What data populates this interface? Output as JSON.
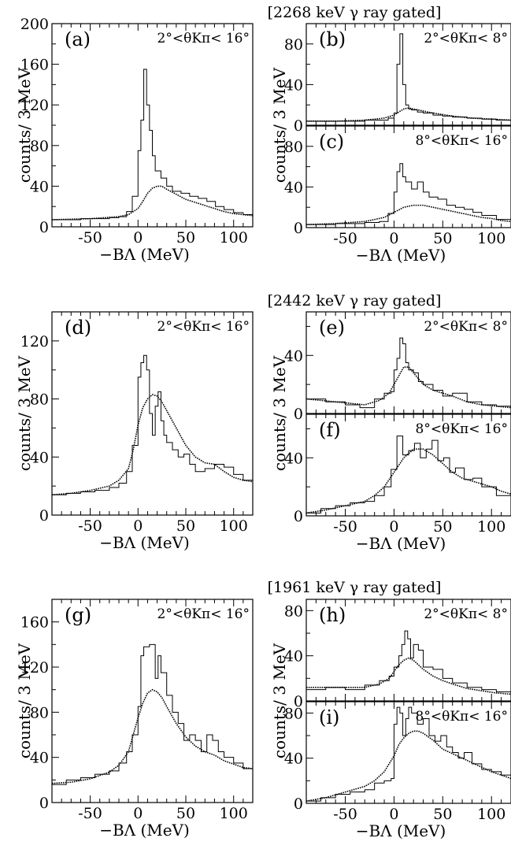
{
  "chart_data": [
    {
      "type": "line",
      "group_title": "[2268 keV γ ray gated]",
      "panel": "(a)",
      "theta_range": "2°<θKπ< 16°",
      "xlabel": "−BΛ (MeV)",
      "ylabel": "counts/ 3 MeV",
      "xlim": [
        -90,
        120
      ],
      "ylim": [
        0,
        200
      ],
      "xticks": [
        -50,
        0,
        50,
        100
      ],
      "yticks": [
        0,
        40,
        80,
        120,
        160,
        200
      ],
      "series": [
        {
          "style": "histogram",
          "x": [
            -90,
            -75,
            -60,
            -45,
            -30,
            -20,
            -12,
            -6,
            0,
            3,
            6,
            9,
            12,
            15,
            18,
            24,
            30,
            36,
            45,
            54,
            63,
            72,
            81,
            90,
            100,
            110,
            120
          ],
          "values": [
            7,
            7,
            8,
            8,
            9,
            10,
            15,
            30,
            75,
            105,
            155,
            120,
            95,
            70,
            55,
            48,
            40,
            35,
            33,
            30,
            28,
            25,
            20,
            17,
            14,
            12,
            11
          ]
        },
        {
          "style": "fit",
          "x": [
            -90,
            -70,
            -50,
            -35,
            -20,
            -10,
            0,
            5,
            10,
            15,
            20,
            25,
            30,
            40,
            50,
            60,
            70,
            80,
            90,
            100,
            110,
            120
          ],
          "values": [
            7,
            7.5,
            8,
            9,
            10,
            12,
            18,
            25,
            33,
            38,
            40,
            40,
            37,
            32,
            27,
            24,
            21,
            18,
            15,
            13,
            12,
            11
          ]
        }
      ]
    },
    {
      "type": "line",
      "panel": "(b)",
      "theta_range": "2°<θKπ< 8°",
      "ylabel": "counts/ 3 MeV",
      "xlim": [
        -90,
        120
      ],
      "ylim": [
        0,
        100
      ],
      "yticks": [
        0,
        40,
        80
      ],
      "series": [
        {
          "style": "histogram",
          "x": [
            -90,
            -60,
            -30,
            -15,
            -6,
            0,
            3,
            6,
            9,
            12,
            15,
            18,
            24,
            30,
            40,
            50,
            60,
            75,
            90,
            105,
            120
          ],
          "values": [
            4,
            4,
            5,
            5,
            7,
            12,
            60,
            90,
            40,
            20,
            16,
            15,
            13,
            12,
            10,
            9,
            8,
            7,
            6,
            5,
            5
          ]
        },
        {
          "style": "fit",
          "x": [
            -90,
            -60,
            -30,
            -10,
            0,
            5,
            10,
            15,
            20,
            30,
            40,
            60,
            80,
            100,
            120
          ],
          "values": [
            4,
            4,
            5,
            7,
            10,
            13,
            16,
            17,
            16,
            14,
            12,
            9,
            7,
            6,
            5
          ]
        }
      ]
    },
    {
      "type": "line",
      "panel": "(c)",
      "theta_range": "8°<θKπ< 16°",
      "xlabel": "−BΛ (MeV)",
      "xlim": [
        -90,
        120
      ],
      "ylim": [
        0,
        100
      ],
      "xticks": [
        -50,
        0,
        50,
        100
      ],
      "yticks": [
        0,
        40,
        80
      ],
      "series": [
        {
          "style": "histogram",
          "x": [
            -90,
            -60,
            -30,
            -15,
            -6,
            0,
            3,
            6,
            9,
            12,
            18,
            24,
            30,
            36,
            45,
            54,
            63,
            72,
            81,
            90,
            105,
            120
          ],
          "values": [
            3,
            4,
            5,
            6,
            14,
            35,
            55,
            63,
            50,
            45,
            38,
            45,
            35,
            30,
            28,
            22,
            20,
            18,
            15,
            12,
            8,
            6
          ]
        },
        {
          "style": "fit",
          "x": [
            -90,
            -60,
            -30,
            -10,
            0,
            10,
            20,
            30,
            40,
            50,
            60,
            70,
            80,
            90,
            100,
            110,
            120
          ],
          "values": [
            3,
            4,
            6,
            10,
            15,
            20,
            22,
            22,
            20,
            18,
            16,
            14,
            12,
            10,
            9,
            7,
            6
          ]
        }
      ]
    },
    {
      "type": "line",
      "group_title": "[2442 keV γ ray gated]",
      "panel": "(d)",
      "theta_range": "2°<θKπ< 16°",
      "xlabel": "−BΛ (MeV)",
      "ylabel": "counts/ 3 MeV",
      "xlim": [
        -90,
        120
      ],
      "ylim": [
        0,
        140
      ],
      "xticks": [
        -50,
        0,
        50,
        100
      ],
      "yticks": [
        0,
        40,
        80,
        120
      ],
      "series": [
        {
          "style": "histogram",
          "x": [
            -90,
            -75,
            -60,
            -45,
            -30,
            -20,
            -12,
            -6,
            0,
            3,
            6,
            9,
            12,
            15,
            18,
            21,
            24,
            27,
            30,
            36,
            42,
            48,
            54,
            60,
            70,
            80,
            90,
            100,
            110,
            120
          ],
          "values": [
            14,
            15,
            16,
            17,
            19,
            22,
            30,
            48,
            95,
            105,
            110,
            100,
            70,
            55,
            75,
            85,
            65,
            55,
            50,
            45,
            40,
            42,
            35,
            30,
            32,
            35,
            33,
            28,
            24,
            22
          ]
        },
        {
          "style": "fit",
          "x": [
            -90,
            -70,
            -50,
            -30,
            -20,
            -10,
            -5,
            0,
            5,
            10,
            15,
            20,
            25,
            30,
            40,
            50,
            60,
            70,
            80,
            90,
            100,
            110,
            120
          ],
          "values": [
            14,
            15,
            17,
            20,
            24,
            32,
            45,
            62,
            74,
            80,
            83,
            82,
            78,
            72,
            60,
            48,
            40,
            36,
            35,
            30,
            26,
            24,
            23
          ]
        }
      ]
    },
    {
      "type": "line",
      "panel": "(e)",
      "theta_range": "2°<θKπ< 8°",
      "ylabel": "counts/ 3 MeV",
      "xlim": [
        -90,
        120
      ],
      "ylim": [
        0,
        70
      ],
      "yticks": [
        0,
        40
      ],
      "series": [
        {
          "style": "histogram",
          "x": [
            -90,
            -70,
            -50,
            -35,
            -20,
            -10,
            -3,
            0,
            3,
            6,
            9,
            12,
            15,
            20,
            25,
            30,
            40,
            50,
            60,
            75,
            90,
            105,
            120
          ],
          "values": [
            10,
            8,
            6,
            4,
            10,
            14,
            15,
            30,
            38,
            52,
            48,
            35,
            30,
            28,
            22,
            20,
            16,
            12,
            14,
            8,
            6,
            5,
            4
          ]
        },
        {
          "style": "fit",
          "x": [
            -90,
            -60,
            -30,
            -15,
            -5,
            0,
            5,
            10,
            15,
            20,
            25,
            30,
            40,
            50,
            60,
            75,
            90,
            105,
            120
          ],
          "values": [
            10,
            8,
            6,
            9,
            14,
            20,
            26,
            32,
            32,
            28,
            24,
            20,
            16,
            14,
            12,
            8,
            6,
            5,
            4
          ]
        }
      ]
    },
    {
      "type": "line",
      "panel": "(f)",
      "theta_range": "8°<θKπ< 16°",
      "xlabel": "−BΛ (MeV)",
      "xlim": [
        -90,
        120
      ],
      "ylim": [
        0,
        70
      ],
      "xticks": [
        -50,
        0,
        50,
        100
      ],
      "yticks": [
        0,
        40
      ],
      "series": [
        {
          "style": "histogram",
          "x": [
            -90,
            -75,
            -60,
            -45,
            -30,
            -20,
            -10,
            -3,
            3,
            9,
            15,
            21,
            27,
            33,
            39,
            45,
            51,
            57,
            63,
            72,
            81,
            90,
            105,
            120
          ],
          "values": [
            2,
            5,
            7,
            9,
            10,
            14,
            20,
            32,
            55,
            42,
            45,
            50,
            40,
            46,
            52,
            38,
            40,
            30,
            33,
            25,
            26,
            20,
            14,
            17
          ]
        },
        {
          "style": "fit",
          "x": [
            -90,
            -70,
            -50,
            -30,
            -20,
            -10,
            0,
            10,
            20,
            30,
            40,
            50,
            60,
            70,
            80,
            90,
            100,
            110,
            120
          ],
          "values": [
            2,
            4,
            7,
            10,
            14,
            20,
            30,
            40,
            46,
            46,
            42,
            36,
            30,
            26,
            24,
            22,
            20,
            17,
            15
          ]
        }
      ]
    },
    {
      "type": "line",
      "group_title": "[1961 keV γ ray gated]",
      "panel": "(g)",
      "theta_range": "2°<θKπ< 16°",
      "xlabel": "−BΛ (MeV)",
      "ylabel": "counts/ 3 MeV",
      "xlim": [
        -90,
        120
      ],
      "ylim": [
        0,
        180
      ],
      "xticks": [
        -50,
        0,
        50,
        100
      ],
      "yticks": [
        0,
        40,
        80,
        120,
        160
      ],
      "series": [
        {
          "style": "histogram",
          "x": [
            -90,
            -75,
            -60,
            -45,
            -30,
            -20,
            -12,
            -6,
            0,
            3,
            6,
            12,
            18,
            21,
            24,
            30,
            36,
            42,
            48,
            54,
            60,
            66,
            72,
            78,
            84,
            90,
            100,
            110,
            120
          ],
          "values": [
            16,
            20,
            22,
            25,
            28,
            35,
            45,
            60,
            85,
            130,
            138,
            140,
            110,
            130,
            115,
            95,
            80,
            70,
            55,
            60,
            55,
            45,
            60,
            55,
            45,
            40,
            35,
            30,
            30
          ]
        },
        {
          "style": "fit",
          "x": [
            -90,
            -70,
            -50,
            -30,
            -20,
            -10,
            -5,
            0,
            5,
            10,
            15,
            20,
            25,
            30,
            40,
            50,
            60,
            70,
            80,
            90,
            100,
            110,
            120
          ],
          "values": [
            17,
            18,
            21,
            27,
            33,
            45,
            60,
            75,
            88,
            97,
            100,
            98,
            93,
            85,
            70,
            58,
            50,
            45,
            42,
            37,
            34,
            31,
            30
          ]
        }
      ]
    },
    {
      "type": "line",
      "panel": "(h)",
      "theta_range": "2°<θKπ< 8°",
      "ylabel": "counts/ 3 MeV",
      "xlim": [
        -90,
        120
      ],
      "ylim": [
        0,
        90
      ],
      "yticks": [
        0,
        40,
        80
      ],
      "series": [
        {
          "style": "histogram",
          "x": [
            -90,
            -70,
            -50,
            -30,
            -15,
            -5,
            0,
            5,
            8,
            11,
            14,
            17,
            20,
            25,
            30,
            40,
            50,
            60,
            75,
            90,
            105,
            120
          ],
          "values": [
            10,
            12,
            10,
            14,
            18,
            22,
            30,
            40,
            50,
            62,
            55,
            38,
            50,
            45,
            30,
            28,
            20,
            16,
            12,
            10,
            8,
            6
          ]
        },
        {
          "style": "fit",
          "x": [
            -90,
            -60,
            -30,
            -15,
            -5,
            0,
            5,
            10,
            15,
            20,
            25,
            30,
            40,
            50,
            60,
            75,
            90,
            105,
            120
          ],
          "values": [
            12,
            12,
            12,
            15,
            20,
            26,
            32,
            36,
            38,
            36,
            32,
            28,
            22,
            18,
            15,
            11,
            9,
            7,
            6
          ]
        }
      ]
    },
    {
      "type": "line",
      "panel": "(i)",
      "theta_range": "8°<θKπ< 16°",
      "xlabel": "−BΛ (MeV)",
      "xlim": [
        -90,
        120
      ],
      "ylim": [
        0,
        90
      ],
      "xticks": [
        -50,
        0,
        50,
        100
      ],
      "yticks": [
        0,
        40,
        80
      ],
      "series": [
        {
          "style": "histogram",
          "x": [
            -90,
            -75,
            -60,
            -45,
            -30,
            -20,
            -10,
            -3,
            0,
            3,
            6,
            9,
            12,
            15,
            18,
            24,
            30,
            36,
            42,
            48,
            54,
            60,
            66,
            72,
            80,
            90,
            100,
            110,
            120
          ],
          "values": [
            2,
            5,
            8,
            10,
            12,
            18,
            20,
            22,
            70,
            85,
            80,
            60,
            75,
            85,
            80,
            70,
            75,
            60,
            55,
            60,
            50,
            45,
            40,
            45,
            35,
            30,
            28,
            25,
            22
          ]
        },
        {
          "style": "fit",
          "x": [
            -90,
            -70,
            -50,
            -30,
            -20,
            -10,
            0,
            5,
            10,
            15,
            20,
            25,
            30,
            40,
            50,
            60,
            70,
            80,
            90,
            100,
            110,
            120
          ],
          "values": [
            2,
            5,
            10,
            15,
            20,
            28,
            42,
            52,
            58,
            62,
            64,
            64,
            62,
            56,
            48,
            44,
            40,
            36,
            32,
            28,
            25,
            22
          ]
        }
      ]
    }
  ]
}
